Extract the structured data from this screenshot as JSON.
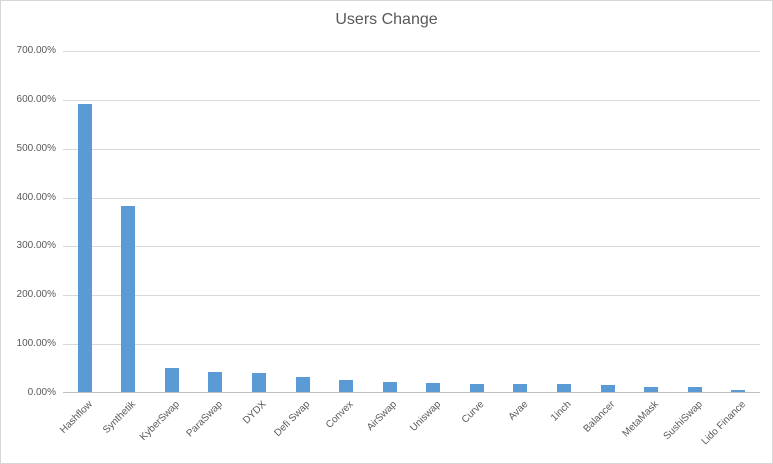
{
  "chart_data": {
    "type": "bar",
    "title": "Users Change",
    "categories": [
      "Hashflow",
      "Synthetik",
      "KyberSwap",
      "ParaSwap",
      "DYDX",
      "Defi Swap",
      "Convex",
      "AirSwap",
      "Uniswap",
      "Curve",
      "Avae",
      "1inch",
      "Balancer",
      "MetaMask",
      "SushiSwap",
      "Lido Finance"
    ],
    "values": [
      590,
      380,
      50,
      40,
      39,
      30,
      24,
      20,
      18,
      17,
      17,
      17,
      14,
      11,
      10,
      4
    ],
    "unit": "percent",
    "xlabel": "",
    "ylabel": "",
    "ylim": [
      0,
      700
    ],
    "yticks": [
      700,
      600,
      500,
      400,
      300,
      200,
      100,
      0
    ],
    "ytick_labels": [
      "700.00%",
      "600.00%",
      "500.00%",
      "400.00%",
      "300.00%",
      "200.00%",
      "100.00%",
      "0.00%"
    ],
    "grid": true,
    "legend": false,
    "bar_color": "#5b9bd5",
    "text_color": "#595959",
    "grid_color": "#d9d9d9",
    "axis_color": "#bfbfbf"
  }
}
